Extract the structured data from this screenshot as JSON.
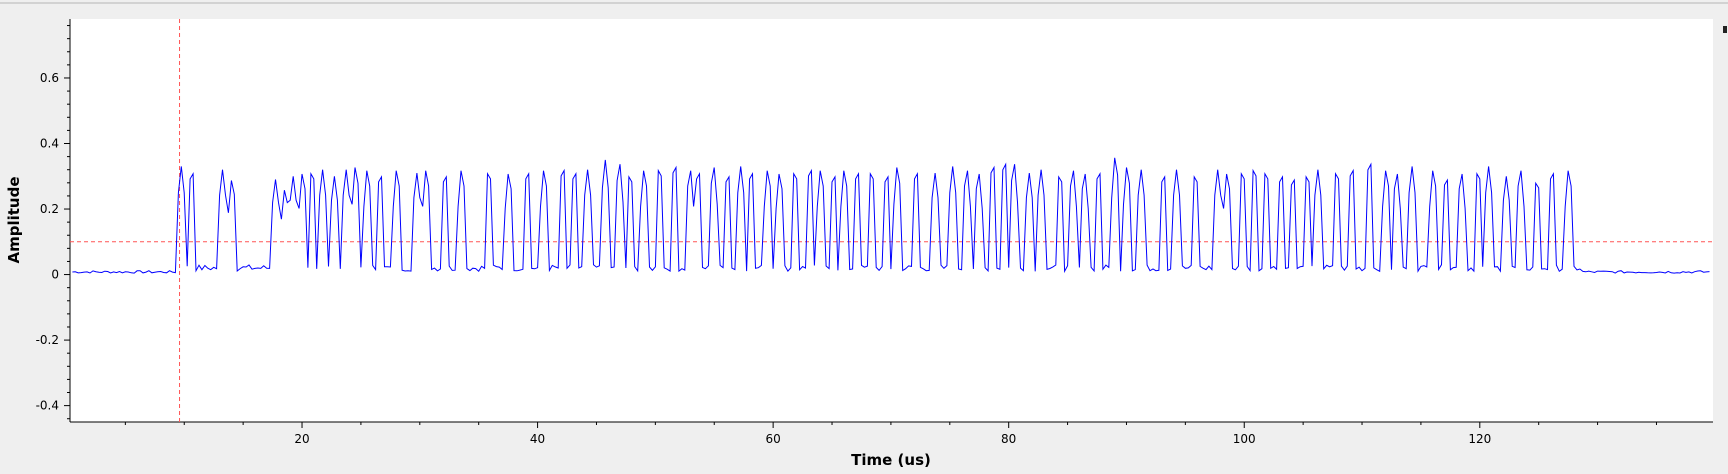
{
  "chart_data": {
    "type": "line",
    "title": "",
    "xlabel": "Time (us)",
    "ylabel": "Amplitude",
    "xlim": [
      0.3,
      139.8
    ],
    "ylim": [
      -0.45,
      0.78
    ],
    "x_ticks": [
      20,
      40,
      60,
      80,
      100,
      120
    ],
    "y_ticks": [
      -0.4,
      -0.2,
      0,
      0.2,
      0.4,
      0.6
    ],
    "x_tick_labels": [
      "20",
      "40",
      "60",
      "80",
      "100",
      "120"
    ],
    "y_tick_labels": [
      "-0.4",
      "-0.2",
      "0",
      "0.2",
      "0.4",
      "0.6"
    ],
    "grid": false,
    "series_color": "#0000ff",
    "threshold_color": "#ff5555",
    "threshold_y": 0.1,
    "marker_x": 9.6,
    "signal": {
      "x_start": 0.5,
      "x_end": 139.5,
      "step": 0.25,
      "burst_start": 9.4,
      "burst_end": 128.5,
      "baseline": 0.008,
      "low_level": 0.02,
      "high_level": 0.31,
      "pulse_width": 0.5,
      "pulse_starts": [
        9.5,
        10.4,
        13.0,
        13.8,
        17.5,
        18.3,
        19.0,
        19.8,
        20.6,
        21.5,
        22.5,
        23.5,
        24.3,
        25.3,
        26.4,
        27.8,
        29.5,
        30.3,
        31.9,
        33.3,
        35.6,
        37.3,
        38.9,
        40.3,
        41.9,
        42.9,
        44.0,
        45.5,
        46.7,
        47.6,
        48.8,
        50.1,
        51.4,
        52.7,
        53.4,
        54.7,
        55.9,
        57.0,
        57.9,
        59.3,
        60.3,
        61.6,
        62.9,
        63.8,
        64.9,
        65.8,
        66.9,
        68.1,
        69.4,
        70.3,
        71.9,
        73.5,
        75.0,
        76.2,
        77.2,
        78.4,
        79.4,
        80.2,
        81.5,
        82.5,
        84.1,
        85.2,
        86.2,
        87.4,
        88.8,
        89.8,
        91.0,
        92.9,
        94.0,
        95.6,
        97.5,
        98.3,
        99.6,
        100.6,
        101.6,
        102.9,
        103.9,
        105.1,
        106.0,
        107.6,
        108.9,
        110.4,
        111.8,
        112.7,
        114.0,
        115.8,
        116.9,
        118.2,
        119.6,
        120.5,
        122.0,
        123.2,
        124.6,
        125.9,
        127.3
      ],
      "peak_values": [
        0.33,
        0.32,
        0.32,
        0.29,
        0.29,
        0.26,
        0.3,
        0.31,
        0.32,
        0.32,
        0.3,
        0.32,
        0.33,
        0.32,
        0.31,
        0.32,
        0.31,
        0.32,
        0.31,
        0.32,
        0.32,
        0.31,
        0.32,
        0.32,
        0.33,
        0.32,
        0.32,
        0.35,
        0.34,
        0.31,
        0.32,
        0.33,
        0.34,
        0.32,
        0.32,
        0.33,
        0.31,
        0.33,
        0.32,
        0.32,
        0.31,
        0.32,
        0.33,
        0.32,
        0.31,
        0.32,
        0.32,
        0.32,
        0.31,
        0.33,
        0.32,
        0.31,
        0.33,
        0.32,
        0.31,
        0.34,
        0.35,
        0.34,
        0.31,
        0.32,
        0.31,
        0.32,
        0.31,
        0.32,
        0.36,
        0.33,
        0.32,
        0.31,
        0.32,
        0.31,
        0.32,
        0.31,
        0.32,
        0.33,
        0.32,
        0.31,
        0.3,
        0.31,
        0.32,
        0.32,
        0.33,
        0.35,
        0.32,
        0.31,
        0.33,
        0.32,
        0.3,
        0.31,
        0.32,
        0.33,
        0.3,
        0.32,
        0.29,
        0.32,
        0.32
      ]
    }
  }
}
